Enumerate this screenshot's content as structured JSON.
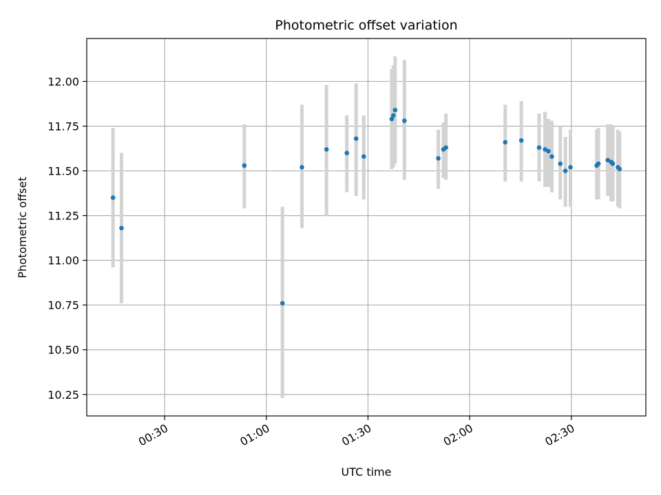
{
  "chart_data": {
    "type": "scatter",
    "title": "Photometric offset variation",
    "xlabel": "UTC time",
    "ylabel": "Photometric offset",
    "grid": true,
    "colors": {
      "point": "#1f77b4",
      "errorbar": "#d3d3d3",
      "grid": "#b0b0b0"
    },
    "xlim": [
      "00:07",
      "02:52"
    ],
    "ylim": [
      10.13,
      12.24
    ],
    "xticks": [
      "00:30",
      "01:00",
      "01:30",
      "02:00",
      "02:30"
    ],
    "yticks": [
      "10.25",
      "10.50",
      "10.75",
      "11.00",
      "11.25",
      "11.50",
      "11.75",
      "12.00"
    ],
    "points": [
      {
        "x": "00:14:45",
        "y": 11.35,
        "ylow": 10.96,
        "yhigh": 11.74
      },
      {
        "x": "00:17:15",
        "y": 11.18,
        "ylow": 10.76,
        "yhigh": 11.6
      },
      {
        "x": "00:53:30",
        "y": 11.53,
        "ylow": 11.29,
        "yhigh": 11.76
      },
      {
        "x": "01:04:45",
        "y": 10.76,
        "ylow": 10.23,
        "yhigh": 11.3
      },
      {
        "x": "01:10:30",
        "y": 11.52,
        "ylow": 11.18,
        "yhigh": 11.87
      },
      {
        "x": "01:17:45",
        "y": 11.62,
        "ylow": 11.25,
        "yhigh": 11.98
      },
      {
        "x": "01:23:45",
        "y": 11.6,
        "ylow": 11.38,
        "yhigh": 11.81
      },
      {
        "x": "01:26:30",
        "y": 11.68,
        "ylow": 11.36,
        "yhigh": 11.99
      },
      {
        "x": "01:28:45",
        "y": 11.58,
        "ylow": 11.34,
        "yhigh": 11.81
      },
      {
        "x": "01:37:00",
        "y": 11.79,
        "ylow": 11.51,
        "yhigh": 12.07
      },
      {
        "x": "01:37:30",
        "y": 11.81,
        "ylow": 11.52,
        "yhigh": 12.09
      },
      {
        "x": "01:38:00",
        "y": 11.84,
        "ylow": 11.54,
        "yhigh": 12.14
      },
      {
        "x": "01:40:45",
        "y": 11.78,
        "ylow": 11.45,
        "yhigh": 12.12
      },
      {
        "x": "01:50:45",
        "y": 11.57,
        "ylow": 11.4,
        "yhigh": 11.73
      },
      {
        "x": "01:52:15",
        "y": 11.62,
        "ylow": 11.46,
        "yhigh": 11.77
      },
      {
        "x": "01:53:00",
        "y": 11.63,
        "ylow": 11.45,
        "yhigh": 11.82
      },
      {
        "x": "02:10:30",
        "y": 11.66,
        "ylow": 11.44,
        "yhigh": 11.87
      },
      {
        "x": "02:15:15",
        "y": 11.67,
        "ylow": 11.44,
        "yhigh": 11.89
      },
      {
        "x": "02:20:30",
        "y": 11.63,
        "ylow": 11.44,
        "yhigh": 11.82
      },
      {
        "x": "02:22:15",
        "y": 11.62,
        "ylow": 11.41,
        "yhigh": 11.83
      },
      {
        "x": "02:23:15",
        "y": 11.61,
        "ylow": 11.41,
        "yhigh": 11.79
      },
      {
        "x": "02:24:15",
        "y": 11.58,
        "ylow": 11.38,
        "yhigh": 11.78
      },
      {
        "x": "02:26:45",
        "y": 11.54,
        "ylow": 11.34,
        "yhigh": 11.75
      },
      {
        "x": "02:28:15",
        "y": 11.5,
        "ylow": 11.3,
        "yhigh": 11.69
      },
      {
        "x": "02:29:45",
        "y": 11.52,
        "ylow": 11.3,
        "yhigh": 11.73
      },
      {
        "x": "02:37:30",
        "y": 11.53,
        "ylow": 11.34,
        "yhigh": 11.73
      },
      {
        "x": "02:38:00",
        "y": 11.54,
        "ylow": 11.34,
        "yhigh": 11.74
      },
      {
        "x": "02:40:45",
        "y": 11.56,
        "ylow": 11.36,
        "yhigh": 11.76
      },
      {
        "x": "02:41:45",
        "y": 11.55,
        "ylow": 11.33,
        "yhigh": 11.76
      },
      {
        "x": "02:42:15",
        "y": 11.54,
        "ylow": 11.33,
        "yhigh": 11.75
      },
      {
        "x": "02:43:45",
        "y": 11.52,
        "ylow": 11.3,
        "yhigh": 11.73
      },
      {
        "x": "02:44:15",
        "y": 11.51,
        "ylow": 11.29,
        "yhigh": 11.72
      }
    ]
  }
}
